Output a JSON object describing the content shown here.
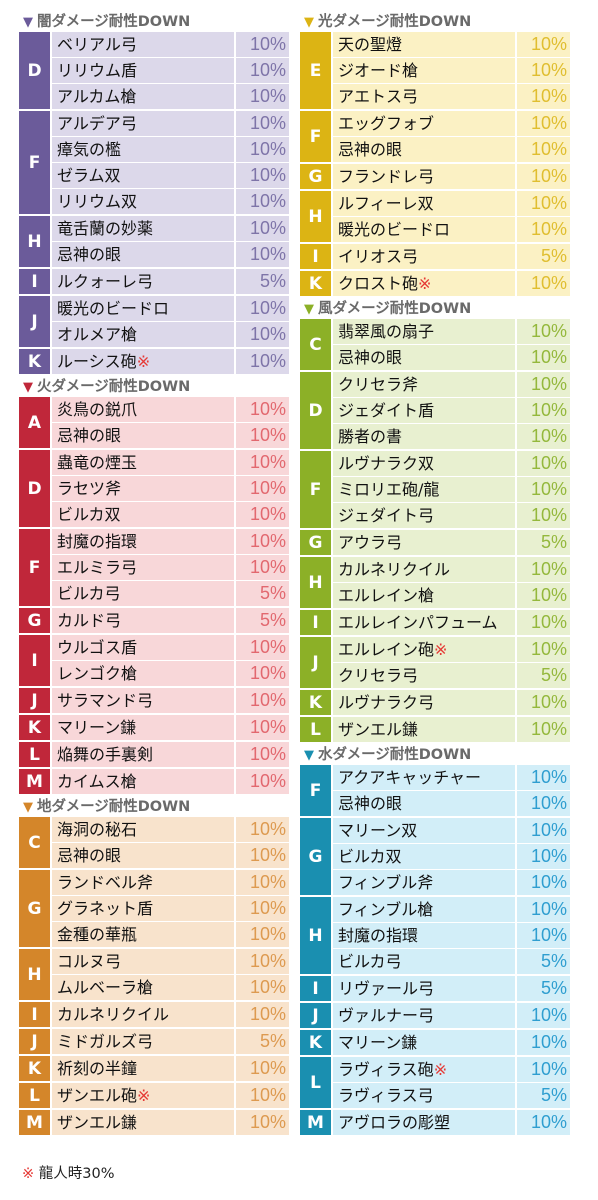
{
  "sections": [
    {
      "id": "dark",
      "column": "left",
      "title": "闇ダメージ耐性DOWN",
      "grade_color": "#6b5b9a",
      "row_color": "#dcd8ea",
      "value_color": "#7e74a8",
      "groups": [
        {
          "grade": "D",
          "items": [
            {
              "name": "ベリアル弓",
              "value": "10%"
            },
            {
              "name": "リリウム盾",
              "value": "10%"
            },
            {
              "name": "アルカム槍",
              "value": "10%"
            }
          ]
        },
        {
          "grade": "F",
          "items": [
            {
              "name": "アルデア弓",
              "value": "10%"
            },
            {
              "name": "瘴気の檻",
              "value": "10%"
            },
            {
              "name": "ゼラム双",
              "value": "10%"
            },
            {
              "name": "リリウム双",
              "value": "10%"
            }
          ]
        },
        {
          "grade": "H",
          "items": [
            {
              "name": "竜舌蘭の妙薬",
              "value": "10%"
            },
            {
              "name": "忌神の眼",
              "value": "10%"
            }
          ]
        },
        {
          "grade": "I",
          "items": [
            {
              "name": "ルクォーレ弓",
              "value": "5%"
            }
          ]
        },
        {
          "grade": "J",
          "items": [
            {
              "name": "暖光のビードロ",
              "value": "10%"
            },
            {
              "name": "オルメア槍",
              "value": "10%"
            }
          ]
        },
        {
          "grade": "K",
          "items": [
            {
              "name": "ルーシス砲",
              "mark": "※",
              "value": "10%"
            }
          ]
        }
      ]
    },
    {
      "id": "fire",
      "column": "left",
      "title": "火ダメージ耐性DOWN",
      "grade_color": "#c0273a",
      "row_color": "#f8d7d9",
      "value_color": "#e2686f",
      "groups": [
        {
          "grade": "A",
          "items": [
            {
              "name": "炎鳥の鋭爪",
              "value": "10%"
            },
            {
              "name": "忌神の眼",
              "value": "10%"
            }
          ]
        },
        {
          "grade": "D",
          "items": [
            {
              "name": "蟲竜の煙玉",
              "value": "10%"
            },
            {
              "name": "ラセツ斧",
              "value": "10%"
            },
            {
              "name": "ビルカ双",
              "value": "10%"
            }
          ]
        },
        {
          "grade": "F",
          "items": [
            {
              "name": "封魔の指環",
              "value": "10%"
            },
            {
              "name": "エルミラ弓",
              "value": "10%"
            },
            {
              "name": "ビルカ弓",
              "value": "5%"
            }
          ]
        },
        {
          "grade": "G",
          "items": [
            {
              "name": "カルド弓",
              "value": "5%"
            }
          ]
        },
        {
          "grade": "I",
          "items": [
            {
              "name": "ウルゴス盾",
              "value": "10%"
            },
            {
              "name": "レンゴク槍",
              "value": "10%"
            }
          ]
        },
        {
          "grade": "J",
          "items": [
            {
              "name": "サラマンド弓",
              "value": "10%"
            }
          ]
        },
        {
          "grade": "K",
          "items": [
            {
              "name": "マリーン鎌",
              "value": "10%"
            }
          ]
        },
        {
          "grade": "L",
          "items": [
            {
              "name": "焔舞の手裏剣",
              "value": "10%"
            }
          ]
        },
        {
          "grade": "M",
          "items": [
            {
              "name": "カイムス槍",
              "value": "10%"
            }
          ]
        }
      ]
    },
    {
      "id": "earth",
      "column": "left",
      "title": "地ダメージ耐性DOWN",
      "grade_color": "#d4862a",
      "row_color": "#f8e3cc",
      "value_color": "#dd9a50",
      "groups": [
        {
          "grade": "C",
          "items": [
            {
              "name": "海洞の秘石",
              "value": "10%"
            },
            {
              "name": "忌神の眼",
              "value": "10%"
            }
          ]
        },
        {
          "grade": "G",
          "items": [
            {
              "name": "ランドベル斧",
              "value": "10%"
            },
            {
              "name": "グラネット盾",
              "value": "10%"
            },
            {
              "name": "金種の華瓶",
              "value": "10%"
            }
          ]
        },
        {
          "grade": "H",
          "items": [
            {
              "name": "コルヌ弓",
              "value": "10%"
            },
            {
              "name": "ムルベーラ槍",
              "value": "10%"
            }
          ]
        },
        {
          "grade": "I",
          "items": [
            {
              "name": "カルネリクイル",
              "value": "10%"
            }
          ]
        },
        {
          "grade": "J",
          "items": [
            {
              "name": "ミドガルズ弓",
              "value": "5%"
            }
          ]
        },
        {
          "grade": "K",
          "items": [
            {
              "name": "祈刻の半鐘",
              "value": "10%"
            }
          ]
        },
        {
          "grade": "L",
          "items": [
            {
              "name": "ザンエル砲",
              "mark": "※",
              "value": "10%"
            }
          ]
        },
        {
          "grade": "M",
          "items": [
            {
              "name": "ザンエル鎌",
              "value": "10%"
            }
          ]
        }
      ]
    },
    {
      "id": "light",
      "column": "right",
      "title": "光ダメージ耐性DOWN",
      "grade_color": "#dcb414",
      "row_color": "#fbf1c4",
      "value_color": "#e0be30",
      "groups": [
        {
          "grade": "E",
          "items": [
            {
              "name": "天の聖燈",
              "value": "10%"
            },
            {
              "name": "ジオード槍",
              "value": "10%"
            },
            {
              "name": "アエトス弓",
              "value": "10%"
            }
          ]
        },
        {
          "grade": "F",
          "items": [
            {
              "name": "エッグフォブ",
              "value": "10%"
            },
            {
              "name": "忌神の眼",
              "value": "10%"
            }
          ]
        },
        {
          "grade": "G",
          "items": [
            {
              "name": "フランドレ弓",
              "value": "10%"
            }
          ]
        },
        {
          "grade": "H",
          "items": [
            {
              "name": "ルフィーレ双",
              "value": "10%"
            },
            {
              "name": "暖光のビードロ",
              "value": "10%"
            }
          ]
        },
        {
          "grade": "I",
          "items": [
            {
              "name": "イリオス弓",
              "value": "5%"
            }
          ]
        },
        {
          "grade": "K",
          "items": [
            {
              "name": "クロスト砲",
              "mark": "※",
              "value": "10%"
            }
          ]
        }
      ]
    },
    {
      "id": "wind",
      "column": "right",
      "title": "風ダメージ耐性DOWN",
      "grade_color": "#8cb027",
      "row_color": "#e8f0d0",
      "value_color": "#94b83c",
      "groups": [
        {
          "grade": "C",
          "items": [
            {
              "name": "翡翠風の扇子",
              "value": "10%"
            },
            {
              "name": "忌神の眼",
              "value": "10%"
            }
          ]
        },
        {
          "grade": "D",
          "items": [
            {
              "name": "クリセラ斧",
              "value": "10%"
            },
            {
              "name": "ジェダイト盾",
              "value": "10%"
            },
            {
              "name": "勝者の書",
              "value": "10%"
            }
          ]
        },
        {
          "grade": "F",
          "items": [
            {
              "name": "ルヴナラク双",
              "value": "10%"
            },
            {
              "name": "ミロリエ砲/龍",
              "value": "10%"
            },
            {
              "name": "ジェダイト弓",
              "value": "10%"
            }
          ]
        },
        {
          "grade": "G",
          "items": [
            {
              "name": "アウラ弓",
              "value": "5%"
            }
          ]
        },
        {
          "grade": "H",
          "items": [
            {
              "name": "カルネリクイル",
              "value": "10%"
            },
            {
              "name": "エルレイン槍",
              "value": "10%"
            }
          ]
        },
        {
          "grade": "I",
          "items": [
            {
              "name": "エルレインパフューム",
              "value": "10%"
            }
          ]
        },
        {
          "grade": "J",
          "items": [
            {
              "name": "エルレイン砲",
              "mark": "※",
              "value": "10%"
            },
            {
              "name": "クリセラ弓",
              "value": "5%"
            }
          ]
        },
        {
          "grade": "K",
          "items": [
            {
              "name": "ルヴナラク弓",
              "value": "10%"
            }
          ]
        },
        {
          "grade": "L",
          "items": [
            {
              "name": "ザンエル鎌",
              "value": "10%"
            }
          ]
        }
      ]
    },
    {
      "id": "water",
      "column": "right",
      "title": "水ダメージ耐性DOWN",
      "grade_color": "#1a8fb0",
      "row_color": "#d2eef8",
      "value_color": "#2f9ed0",
      "groups": [
        {
          "grade": "F",
          "items": [
            {
              "name": "アクアキャッチャー",
              "value": "10%"
            },
            {
              "name": "忌神の眼",
              "value": "10%"
            }
          ]
        },
        {
          "grade": "G",
          "items": [
            {
              "name": "マリーン双",
              "value": "10%"
            },
            {
              "name": "ビルカ双",
              "value": "10%"
            },
            {
              "name": "フィンブル斧",
              "value": "10%"
            }
          ]
        },
        {
          "grade": "H",
          "items": [
            {
              "name": "フィンブル槍",
              "value": "10%"
            },
            {
              "name": "封魔の指環",
              "value": "10%"
            },
            {
              "name": "ビルカ弓",
              "value": "5%"
            }
          ]
        },
        {
          "grade": "I",
          "items": [
            {
              "name": "リヴァール弓",
              "value": "5%"
            }
          ]
        },
        {
          "grade": "J",
          "items": [
            {
              "name": "ヴァルナー弓",
              "value": "10%"
            }
          ]
        },
        {
          "grade": "K",
          "items": [
            {
              "name": "マリーン鎌",
              "value": "10%"
            }
          ]
        },
        {
          "grade": "L",
          "items": [
            {
              "name": "ラヴィラス砲",
              "mark": "※",
              "value": "10%"
            },
            {
              "name": "ラヴィラス弓",
              "value": "5%"
            }
          ]
        },
        {
          "grade": "M",
          "items": [
            {
              "name": "アヴロラの彫塑",
              "value": "10%"
            }
          ]
        }
      ]
    }
  ],
  "title_marker": "▼",
  "footnote": {
    "mark": "※",
    "text": "龍人時30%"
  }
}
